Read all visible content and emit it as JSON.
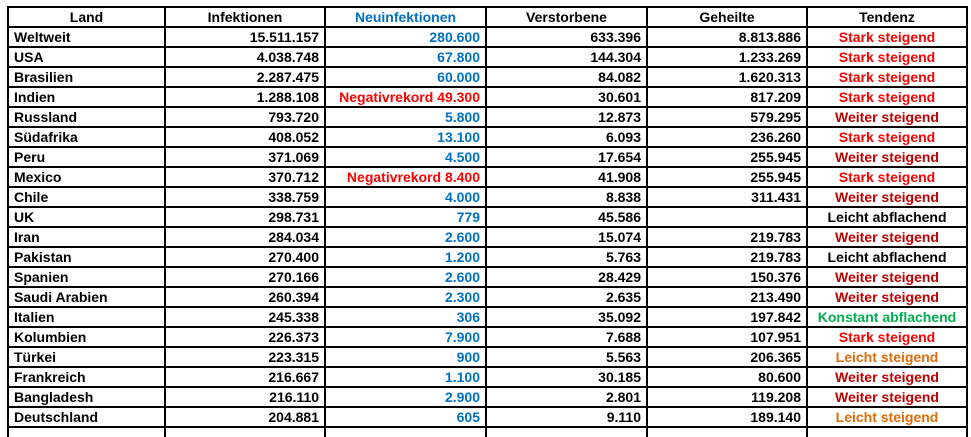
{
  "colors": {
    "black": "#000000",
    "blue": "#0070C0",
    "bright_red": "#FF0000",
    "dark_red": "#C00000",
    "green": "#00B050",
    "orange": "#E36C0A",
    "border": "#000000",
    "background": "#FFFFFF"
  },
  "chart_data": {
    "type": "table",
    "columns": [
      {
        "key": "land",
        "label": "Land",
        "color_key": "black"
      },
      {
        "key": "infektionen",
        "label": "Infektionen",
        "color_key": "black"
      },
      {
        "key": "neuinfektionen",
        "label": "Neuinfektionen",
        "color_key": "blue"
      },
      {
        "key": "verstorbene",
        "label": "Verstorbene",
        "color_key": "black"
      },
      {
        "key": "geheilte",
        "label": "Geheilte",
        "color_key": "black"
      },
      {
        "key": "tendenz",
        "label": "Tendenz",
        "color_key": "black"
      }
    ],
    "rows": [
      {
        "land": "Weltweit",
        "infektionen": "15.511.157",
        "neuinfektionen": "280.600",
        "neu_color": "blue",
        "verstorbene": "633.396",
        "geheilte": "8.813.886",
        "tendenz": "Stark steigend",
        "tendenz_color": "bright_red",
        "misspelled": false
      },
      {
        "land": "USA",
        "infektionen": "4.038.748",
        "neuinfektionen": "67.800",
        "neu_color": "blue",
        "verstorbene": "144.304",
        "geheilte": "1.233.269",
        "tendenz": "Stark steigend",
        "tendenz_color": "bright_red",
        "misspelled": false
      },
      {
        "land": "Brasilien",
        "infektionen": "2.287.475",
        "neuinfektionen": "60.000",
        "neu_color": "blue",
        "verstorbene": "84.082",
        "geheilte": "1.620.313",
        "tendenz": "Stark steigend",
        "tendenz_color": "bright_red",
        "misspelled": false
      },
      {
        "land": "Indien",
        "infektionen": "1.288.108",
        "neuinfektionen": "Negativrekord 49.300",
        "neu_color": "bright_red",
        "verstorbene": "30.601",
        "geheilte": "817.209",
        "tendenz": "Stark steigend",
        "tendenz_color": "bright_red",
        "misspelled": false
      },
      {
        "land": "Russland",
        "infektionen": "793.720",
        "neuinfektionen": "5.800",
        "neu_color": "blue",
        "verstorbene": "12.873",
        "geheilte": "579.295",
        "tendenz": "Weiter steigend",
        "tendenz_color": "dark_red",
        "misspelled": false
      },
      {
        "land": "Südafrika",
        "infektionen": "408.052",
        "neuinfektionen": "13.100",
        "neu_color": "blue",
        "verstorbene": "6.093",
        "geheilte": "236.260",
        "tendenz": "Stark steigend",
        "tendenz_color": "bright_red",
        "misspelled": false
      },
      {
        "land": "Peru",
        "infektionen": "371.069",
        "neuinfektionen": "4.500",
        "neu_color": "blue",
        "verstorbene": "17.654",
        "geheilte": "255.945",
        "tendenz": "Weiter steigend",
        "tendenz_color": "dark_red",
        "misspelled": false
      },
      {
        "land": "Mexico",
        "infektionen": "370.712",
        "neuinfektionen": "Negativrekord 8.400",
        "neu_color": "bright_red",
        "verstorbene": "41.908",
        "geheilte": "255.945",
        "tendenz": "Stark steigend",
        "tendenz_color": "bright_red",
        "misspelled": false
      },
      {
        "land": "Chile",
        "infektionen": "338.759",
        "neuinfektionen": "4.000",
        "neu_color": "blue",
        "verstorbene": "8.838",
        "geheilte": "311.431",
        "tendenz": "Weiter steigend",
        "tendenz_color": "dark_red",
        "misspelled": false
      },
      {
        "land": "UK",
        "infektionen": "298.731",
        "neuinfektionen": "779",
        "neu_color": "blue",
        "verstorbene": "45.586",
        "geheilte": "",
        "tendenz": "Leicht abflachend",
        "tendenz_color": "black",
        "misspelled": false
      },
      {
        "land": "Iran",
        "infektionen": "284.034",
        "neuinfektionen": "2.600",
        "neu_color": "blue",
        "verstorbene": "15.074",
        "geheilte": "219.783",
        "tendenz": "Weiter steigend",
        "tendenz_color": "dark_red",
        "misspelled": false
      },
      {
        "land": "Pakistan",
        "infektionen": "270.400",
        "neuinfektionen": "1.200",
        "neu_color": "blue",
        "verstorbene": "5.763",
        "geheilte": "219.783",
        "tendenz": "Leicht abflachend",
        "tendenz_color": "black",
        "misspelled": false
      },
      {
        "land": "Spanien",
        "infektionen": "270.166",
        "neuinfektionen": "2.600",
        "neu_color": "blue",
        "verstorbene": "28.429",
        "geheilte": "150.376",
        "tendenz": "Weiter steigend",
        "tendenz_color": "dark_red",
        "misspelled": false
      },
      {
        "land": "Saudi Arabien",
        "infektionen": "260.394",
        "neuinfektionen": "2.300",
        "neu_color": "blue",
        "verstorbene": "2.635",
        "geheilte": "213.490",
        "tendenz": "Weiter steigend",
        "tendenz_color": "dark_red",
        "misspelled": false
      },
      {
        "land": "Italien",
        "infektionen": "245.338",
        "neuinfektionen": "306",
        "neu_color": "blue",
        "verstorbene": "35.092",
        "geheilte": "197.842",
        "tendenz": "Konstant abflachend",
        "tendenz_color": "green",
        "misspelled": false
      },
      {
        "land": "Kolumbien",
        "infektionen": "226.373",
        "neuinfektionen": "7.900",
        "neu_color": "blue",
        "verstorbene": "7.688",
        "geheilte": "107.951",
        "tendenz": "Stark steigend",
        "tendenz_color": "bright_red",
        "misspelled": false
      },
      {
        "land": "Türkei",
        "infektionen": "223.315",
        "neuinfektionen": "900",
        "neu_color": "blue",
        "verstorbene": "5.563",
        "geheilte": "206.365",
        "tendenz": "Leicht steigend",
        "tendenz_color": "orange",
        "misspelled": false
      },
      {
        "land": "Frankreich",
        "infektionen": "216.667",
        "neuinfektionen": "1.100",
        "neu_color": "blue",
        "verstorbene": "30.185",
        "geheilte": "80.600",
        "tendenz": "Weiter steigend",
        "tendenz_color": "dark_red",
        "misspelled": false
      },
      {
        "land": "Bangladesh",
        "infektionen": "216.110",
        "neuinfektionen": "2.900",
        "neu_color": "blue",
        "verstorbene": "2.801",
        "geheilte": "119.208",
        "tendenz": "Weiter steigend",
        "tendenz_color": "dark_red",
        "misspelled": true
      },
      {
        "land": "Deutschland",
        "infektionen": "204.881",
        "neuinfektionen": "605",
        "neu_color": "blue",
        "verstorbene": "9.110",
        "geheilte": "189.140",
        "tendenz": "Leicht steigend",
        "tendenz_color": "orange",
        "misspelled": false
      }
    ],
    "trailing_empty_row": true,
    "legend_position": "none",
    "grid": true
  }
}
